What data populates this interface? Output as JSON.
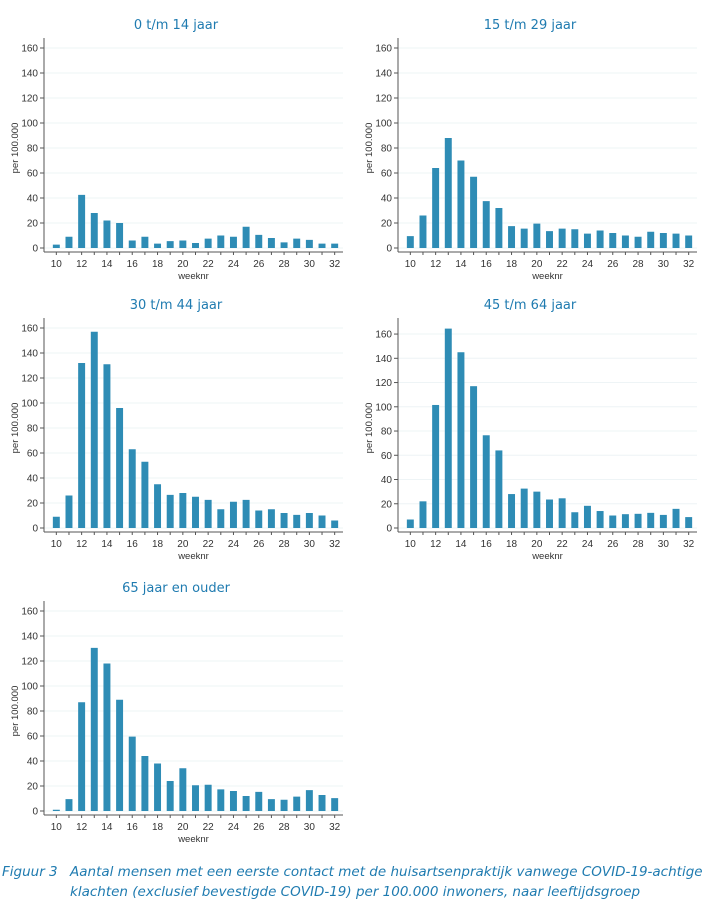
{
  "colors": {
    "bar": "#2e8cb5",
    "title": "#1f7bb0",
    "grid": "#eef4f6",
    "axis": "#555555"
  },
  "chart_data": [
    {
      "type": "bar",
      "title": "0 t/m 14 jaar",
      "xlabel": "weeknr",
      "ylabel": "per 100.000",
      "ylim": [
        0,
        160
      ],
      "yticks": [
        0,
        20,
        40,
        60,
        80,
        100,
        120,
        140,
        160
      ],
      "xticks": [
        10,
        12,
        14,
        16,
        18,
        20,
        22,
        24,
        26,
        28,
        30,
        32
      ],
      "grid": true,
      "categories": [
        10,
        11,
        12,
        13,
        14,
        15,
        16,
        17,
        18,
        19,
        20,
        21,
        22,
        23,
        24,
        25,
        26,
        27,
        28,
        29,
        30,
        31,
        32
      ],
      "values": [
        2.7,
        9,
        42.5,
        28,
        22,
        20,
        6,
        9,
        3.5,
        5.5,
        6,
        4,
        7.5,
        10,
        9,
        17,
        10.5,
        8,
        4.5,
        7.5,
        6.5,
        3.5,
        3.5
      ]
    },
    {
      "type": "bar",
      "title": "15 t/m 29 jaar",
      "xlabel": "weeknr",
      "ylabel": "per 100.000",
      "ylim": [
        0,
        160
      ],
      "yticks": [
        0,
        20,
        40,
        60,
        80,
        100,
        120,
        140,
        160
      ],
      "xticks": [
        10,
        12,
        14,
        16,
        18,
        20,
        22,
        24,
        26,
        28,
        30,
        32
      ],
      "grid": true,
      "categories": [
        10,
        11,
        12,
        13,
        14,
        15,
        16,
        17,
        18,
        19,
        20,
        21,
        22,
        23,
        24,
        25,
        26,
        27,
        28,
        29,
        30,
        31,
        32
      ],
      "values": [
        9.5,
        26,
        64,
        88,
        70,
        57,
        37.5,
        32,
        17.5,
        15.5,
        19.5,
        13.5,
        15.5,
        15,
        11.5,
        14,
        12,
        10,
        9,
        13,
        12,
        11.5,
        10
      ]
    },
    {
      "type": "bar",
      "title": "30 t/m 44 jaar",
      "xlabel": "weeknr",
      "ylabel": "per 100.000",
      "ylim": [
        0,
        160
      ],
      "yticks": [
        0,
        20,
        40,
        60,
        80,
        100,
        120,
        140,
        160
      ],
      "xticks": [
        10,
        12,
        14,
        16,
        18,
        20,
        22,
        24,
        26,
        28,
        30,
        32
      ],
      "grid": true,
      "categories": [
        10,
        11,
        12,
        13,
        14,
        15,
        16,
        17,
        18,
        19,
        20,
        21,
        22,
        23,
        24,
        25,
        26,
        27,
        28,
        29,
        30,
        31,
        32
      ],
      "values": [
        9,
        26,
        132,
        157,
        131,
        96,
        63,
        53,
        35,
        26.5,
        28,
        25,
        22.5,
        15,
        21,
        22.5,
        14,
        15,
        12,
        10.5,
        12,
        10,
        6
      ]
    },
    {
      "type": "bar",
      "title": "45 t/m 64 jaar",
      "xlabel": "weeknr",
      "ylabel": "per 100.000",
      "ylim": [
        0,
        165
      ],
      "yticks": [
        0,
        20,
        40,
        60,
        80,
        100,
        120,
        140,
        160
      ],
      "xticks": [
        10,
        12,
        14,
        16,
        18,
        20,
        22,
        24,
        26,
        28,
        30,
        32
      ],
      "grid": true,
      "categories": [
        10,
        11,
        12,
        13,
        14,
        15,
        16,
        17,
        18,
        19,
        20,
        21,
        22,
        23,
        24,
        25,
        26,
        27,
        28,
        29,
        30,
        31,
        32
      ],
      "values": [
        7,
        22,
        101.5,
        164.5,
        145,
        117,
        76.5,
        64,
        28,
        32.5,
        30,
        23.5,
        24.5,
        13,
        18.3,
        14,
        10.3,
        11.4,
        11.7,
        12.5,
        10.8,
        15.8,
        9
      ]
    },
    {
      "type": "bar",
      "title": "65 jaar en ouder",
      "xlabel": "weeknr",
      "ylabel": "per 100.000",
      "ylim": [
        0,
        160
      ],
      "yticks": [
        0,
        20,
        40,
        60,
        80,
        100,
        120,
        140,
        160
      ],
      "xticks": [
        10,
        12,
        14,
        16,
        18,
        20,
        22,
        24,
        26,
        28,
        30,
        32
      ],
      "grid": true,
      "categories": [
        10,
        11,
        12,
        13,
        14,
        15,
        16,
        17,
        18,
        19,
        20,
        21,
        22,
        23,
        24,
        25,
        26,
        27,
        28,
        29,
        30,
        31,
        32
      ],
      "values": [
        1,
        9.5,
        87,
        130.5,
        118,
        89,
        59.5,
        44,
        38,
        24,
        34.2,
        20.6,
        21,
        17.3,
        16,
        12,
        15.3,
        9.5,
        9,
        11.5,
        16.7,
        12.8,
        10.3
      ]
    }
  ],
  "caption": {
    "figure_label": "Figuur 3",
    "text": "Aantal mensen met een eerste contact met de huisartsenpraktijk vanwege COVID-19-achtige klachten (exclusief bevestigde COVID-19) per 100.000 inwoners, naar leeftijdsgroep"
  }
}
